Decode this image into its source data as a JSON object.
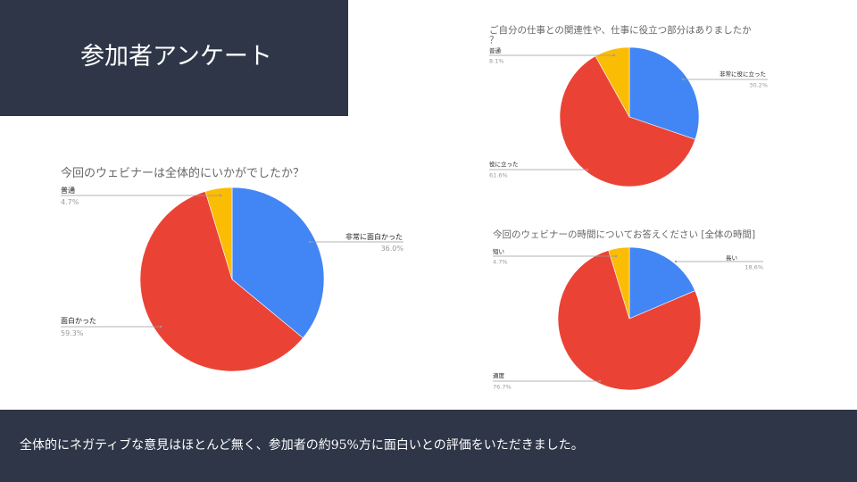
{
  "slide": {
    "title": "参加者アンケート",
    "footer": "全体的にネガティブな意見はほとんど無く、参加者の約95%方に面白いとの評価をいただきました。"
  },
  "colors": {
    "navy": "#2e3648",
    "blue": "#4285f4",
    "red": "#ea4335",
    "yellow": "#fbbc04"
  },
  "chart_data": [
    {
      "id": "webinar-overall",
      "type": "pie",
      "title": "今回のウェビナーは全体的にいかがでしたか？",
      "slices": [
        {
          "label": "非常に面白かった",
          "value": 36.0,
          "value_label": "36.0%",
          "color": "#4285f4"
        },
        {
          "label": "面白かった",
          "value": 59.3,
          "value_label": "59.3%",
          "color": "#ea4335"
        },
        {
          "label": "普通",
          "value": 4.7,
          "value_label": "4.7%",
          "color": "#fbbc04"
        }
      ],
      "legend": "none"
    },
    {
      "id": "work-relevance",
      "type": "pie",
      "title": "ご自分の仕事との関連性や、仕事に役立つ部分はありましたか？",
      "slices": [
        {
          "label": "非常に役に立った",
          "value": 30.2,
          "value_label": "30.2%",
          "color": "#4285f4"
        },
        {
          "label": "役に立った",
          "value": 61.6,
          "value_label": "61.6%",
          "color": "#ea4335"
        },
        {
          "label": "普通",
          "value": 8.1,
          "value_label": "8.1%",
          "color": "#fbbc04"
        }
      ],
      "legend": "none"
    },
    {
      "id": "webinar-duration",
      "type": "pie",
      "title": "今回のウェビナーの時間についてお答えください [全体の時間]",
      "slices": [
        {
          "label": "長い",
          "value": 18.6,
          "value_label": "18.6%",
          "color": "#4285f4"
        },
        {
          "label": "適度",
          "value": 76.7,
          "value_label": "76.7%",
          "color": "#ea4335"
        },
        {
          "label": "短い",
          "value": 4.7,
          "value_label": "4.7%",
          "color": "#fbbc04"
        }
      ],
      "legend": "none"
    }
  ]
}
